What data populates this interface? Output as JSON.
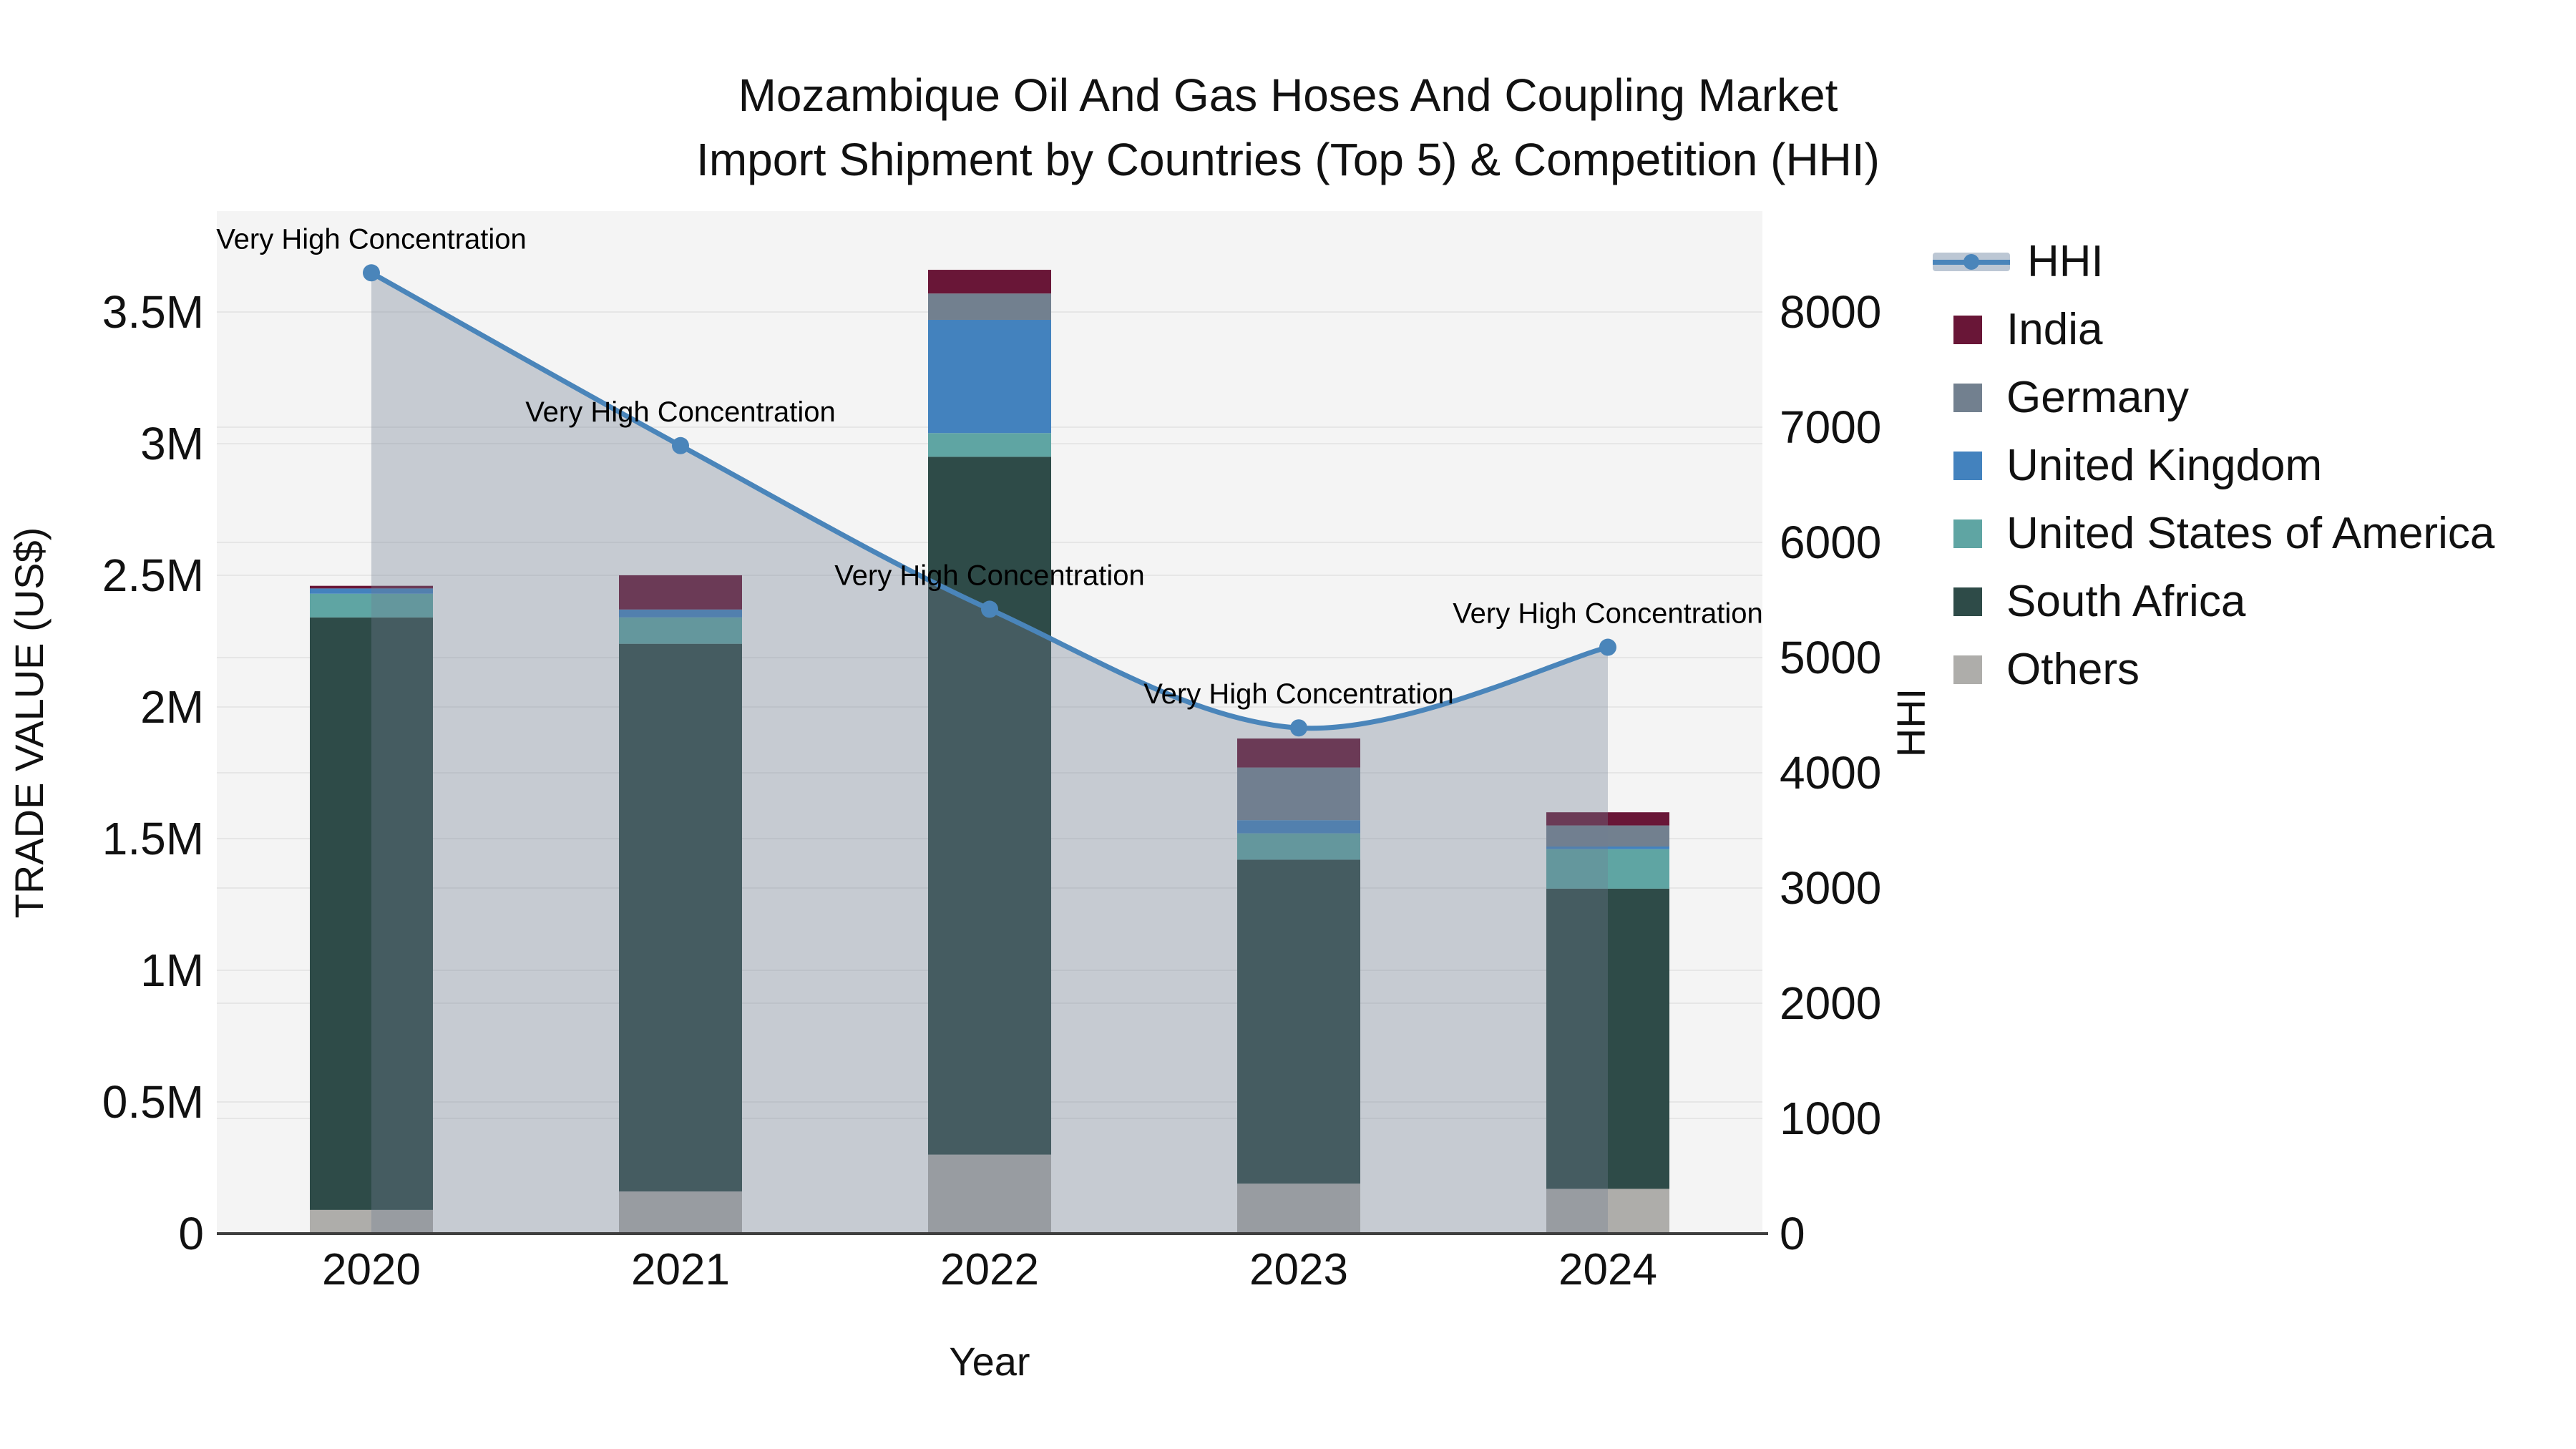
{
  "title": {
    "line1": "Mozambique Oil And Gas Hoses And Coupling Market",
    "line2": "Import Shipment by Countries (Top 5) & Competition (HHI)"
  },
  "chart_data": {
    "type": "bar+line",
    "title": "Mozambique Oil And Gas Hoses And Coupling Market Import Shipment by Countries (Top 5) & Competition (HHI)",
    "categories": [
      "2020",
      "2021",
      "2022",
      "2023",
      "2024"
    ],
    "units": "US$ millions (bars), HHI index (line)",
    "bar_series_bottom_to_top": [
      {
        "name": "Others",
        "color": "#aeadaa",
        "values": [
          0.09,
          0.16,
          0.3,
          0.19,
          0.17
        ]
      },
      {
        "name": "South Africa",
        "color": "#2e4b48",
        "values": [
          2.25,
          2.08,
          2.65,
          1.23,
          1.14
        ]
      },
      {
        "name": "United States of America",
        "color": "#5fa5a3",
        "values": [
          0.09,
          0.1,
          0.09,
          0.1,
          0.15
        ]
      },
      {
        "name": "United Kingdom",
        "color": "#4382be",
        "values": [
          0.02,
          0.03,
          0.43,
          0.05,
          0.01
        ]
      },
      {
        "name": "Germany",
        "color": "#72808f",
        "values": [
          0.0,
          0.0,
          0.1,
          0.2,
          0.08
        ]
      },
      {
        "name": "India",
        "color": "#691637",
        "values": [
          0.01,
          0.13,
          0.09,
          0.11,
          0.05
        ]
      }
    ],
    "bar_totals": [
      2.46,
      2.5,
      3.66,
      1.88,
      1.6
    ],
    "line_series": {
      "name": "HHI",
      "color": "#4a85ba",
      "fill_color": "rgba(112,125,147,0.35)",
      "values": [
        8340,
        6840,
        5420,
        4390,
        5090
      ],
      "smooth": true
    },
    "annotations": [
      {
        "x": "2020",
        "text": "Very High Concentration"
      },
      {
        "x": "2021",
        "text": "Very High Concentration"
      },
      {
        "x": "2022",
        "text": "Very High Concentration"
      },
      {
        "x": "2023",
        "text": "Very High Concentration"
      },
      {
        "x": "2024",
        "text": "Very High Concentration"
      }
    ],
    "x_axis": {
      "title": "Year",
      "labels": [
        "2020",
        "2021",
        "2022",
        "2023",
        "2024"
      ]
    },
    "y_left": {
      "title": "TRADE VALUE (US$)",
      "tick_labels": [
        "0",
        "0.5M",
        "1M",
        "1.5M",
        "2M",
        "2.5M",
        "3M",
        "3.5M"
      ],
      "tick_values": [
        0,
        0.5,
        1,
        1.5,
        2,
        2.5,
        3,
        3.5
      ],
      "range_max": 3.883
    },
    "y_right": {
      "title": "HHI",
      "tick_labels": [
        "0",
        "1000",
        "2000",
        "3000",
        "4000",
        "5000",
        "6000",
        "7000",
        "8000"
      ],
      "tick_values": [
        0,
        1000,
        2000,
        3000,
        4000,
        5000,
        6000,
        7000,
        8000
      ],
      "range_max": 8876
    },
    "legend": {
      "position": "right",
      "items": [
        {
          "label": "HHI",
          "type": "line",
          "color": "#4a85ba",
          "band_color": "#bcc7d4"
        },
        {
          "label": "India",
          "type": "square",
          "color": "#691637"
        },
        {
          "label": "Germany",
          "type": "square",
          "color": "#72808f"
        },
        {
          "label": "United Kingdom",
          "type": "square",
          "color": "#4382be"
        },
        {
          "label": "United States of America",
          "type": "square",
          "color": "#5fa5a3"
        },
        {
          "label": "South Africa",
          "type": "square",
          "color": "#2e4b48"
        },
        {
          "label": "Others",
          "type": "square",
          "color": "#aeadaa"
        }
      ]
    },
    "style": {
      "plot_bg": "#f4f4f4",
      "grid_color": "#e6e6e6",
      "axis_line_color": "#3f3f3f",
      "text_color": "#111111"
    },
    "grid": true
  }
}
